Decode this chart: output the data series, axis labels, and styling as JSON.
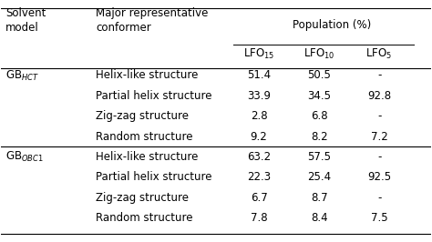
{
  "col_headers": [
    "Solvent\nmodel",
    "Major representative\nconformer",
    "Population (%)"
  ],
  "sub_headers": [
    "LFO$_{15}$",
    "LFO$_{10}$",
    "LFO$_{5}$"
  ],
  "rows": [
    [
      "GB$_{HCT}$",
      "Helix-like structure",
      "51.4",
      "50.5",
      "-"
    ],
    [
      "",
      "Partial helix structure",
      "33.9",
      "34.5",
      "92.8"
    ],
    [
      "",
      "Zig-zag structure",
      "2.8",
      "6.8",
      "-"
    ],
    [
      "",
      "Random structure",
      "9.2",
      "8.2",
      "7.2"
    ],
    [
      "GB$_{OBC1}$",
      "Helix-like structure",
      "63.2",
      "57.5",
      "-"
    ],
    [
      "",
      "Partial helix structure",
      "22.3",
      "25.4",
      "92.5"
    ],
    [
      "",
      "Zig-zag structure",
      "6.7",
      "8.7",
      "-"
    ],
    [
      "",
      "Random structure",
      "7.8",
      "8.4",
      "7.5"
    ]
  ],
  "background_color": "#ffffff",
  "text_color": "#000000",
  "font_size": 8.5,
  "header_font_size": 8.5
}
